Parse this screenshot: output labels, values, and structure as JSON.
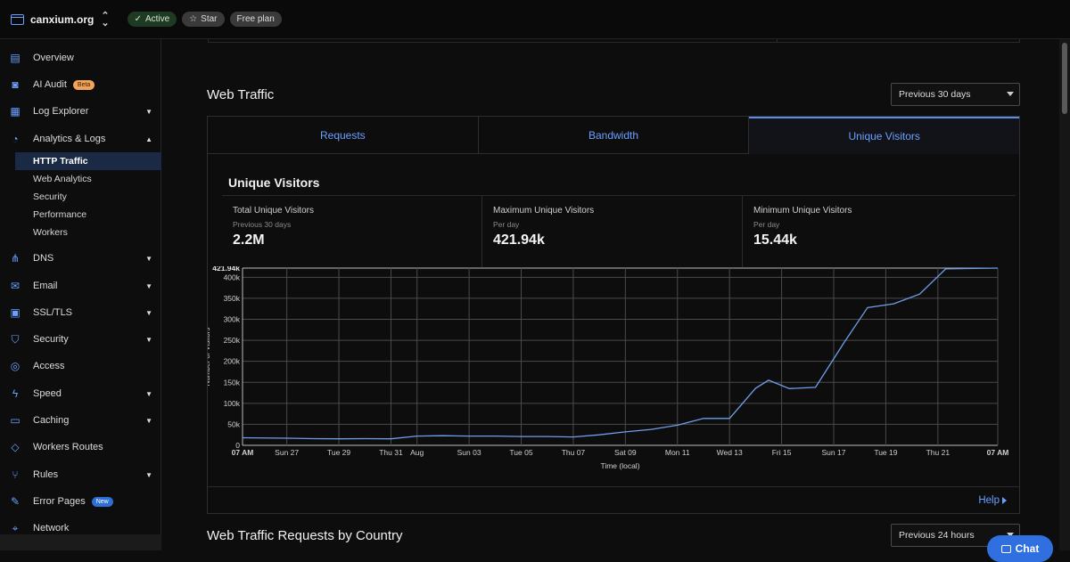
{
  "topbar": {
    "site_name": "canxium.org",
    "status_label": "Active",
    "star_label": "Star",
    "plan_label": "Free plan"
  },
  "sidebar": {
    "items": [
      {
        "label": "Overview",
        "icon": "document-icon",
        "top": 9
      },
      {
        "label": "AI Audit",
        "icon": "robot-icon",
        "badge": "Beta",
        "top": 39
      },
      {
        "label": "Log Explorer",
        "icon": "log-icon",
        "caret": "down",
        "top": 69
      },
      {
        "label": "Analytics & Logs",
        "icon": "chart-pie-icon",
        "caret": "up",
        "top": 100
      }
    ],
    "sub_items": [
      "HTTP Traffic",
      "Web Analytics",
      "Security",
      "Performance",
      "Workers"
    ],
    "items2": [
      {
        "label": "DNS",
        "icon": "network-icon",
        "caret": "down"
      },
      {
        "label": "Email",
        "icon": "email-icon",
        "caret": "down"
      },
      {
        "label": "SSL/TLS",
        "icon": "lock-icon",
        "caret": "down"
      },
      {
        "label": "Security",
        "icon": "shield-icon",
        "caret": "down"
      },
      {
        "label": "Access",
        "icon": "access-icon"
      },
      {
        "label": "Speed",
        "icon": "bolt-icon",
        "caret": "down"
      },
      {
        "label": "Caching",
        "icon": "server-icon",
        "caret": "down"
      },
      {
        "label": "Workers Routes",
        "icon": "workers-icon"
      },
      {
        "label": "Rules",
        "icon": "rules-icon",
        "caret": "down"
      },
      {
        "label": "Error Pages",
        "icon": "wrench-icon",
        "badge": "New"
      },
      {
        "label": "Network",
        "icon": "pin-icon"
      }
    ]
  },
  "web_traffic": {
    "title": "Web Traffic",
    "range_select": "Previous 30 days",
    "tabs": [
      "Requests",
      "Bandwidth",
      "Unique Visitors"
    ],
    "active_tab": 2,
    "card_title": "Unique Visitors",
    "stats": [
      {
        "label": "Total Unique Visitors",
        "sub": "Previous 30 days",
        "value": "2.2M"
      },
      {
        "label": "Maximum Unique Visitors",
        "sub": "Per day",
        "value": "421.94k"
      },
      {
        "label": "Minimum Unique Visitors",
        "sub": "Per day",
        "value": "15.44k"
      }
    ],
    "help_label": "Help"
  },
  "chart_data": {
    "type": "line",
    "ylabel": "Number of Visitors",
    "xlabel": "Time (local)",
    "ylim": [
      0,
      421940
    ],
    "y_ticks": [
      "0",
      "50k",
      "100k",
      "150k",
      "200k",
      "250k",
      "300k",
      "350k",
      "400k"
    ],
    "y_max_label": "421.94k",
    "x_tick_labels": [
      "07 AM",
      "Sun 27",
      "Tue 29",
      "Thu 31",
      "Aug",
      "Sun 03",
      "Tue 05",
      "Thu 07",
      "Sat 09",
      "Mon 11",
      "Wed 13",
      "Fri 15",
      "Sun 17",
      "Tue 19",
      "Thu 21",
      "07 AM"
    ],
    "x_tick_days": [
      0,
      1.7,
      3.7,
      5.7,
      6.7,
      8.7,
      10.7,
      12.7,
      14.7,
      16.7,
      18.7,
      20.7,
      22.7,
      24.7,
      26.7,
      29
    ],
    "grid": true,
    "series": [
      {
        "values": [
          [
            0,
            18000
          ],
          [
            1.7,
            17000
          ],
          [
            2.7,
            16000
          ],
          [
            3.7,
            15440
          ],
          [
            4.7,
            16000
          ],
          [
            5.7,
            15500
          ],
          [
            6.7,
            22000
          ],
          [
            7.7,
            23000
          ],
          [
            8.7,
            22000
          ],
          [
            9.7,
            22000
          ],
          [
            10.7,
            21000
          ],
          [
            11.7,
            21000
          ],
          [
            12.7,
            20000
          ],
          [
            13.7,
            25000
          ],
          [
            14.7,
            32000
          ],
          [
            15.7,
            38000
          ],
          [
            16.7,
            48000
          ],
          [
            17.7,
            64000
          ],
          [
            18.7,
            64000
          ],
          [
            19.7,
            136000
          ],
          [
            20.2,
            155000
          ],
          [
            21.0,
            135000
          ],
          [
            22.0,
            138000
          ],
          [
            23.1,
            245000
          ],
          [
            24.0,
            328000
          ],
          [
            25.0,
            337000
          ],
          [
            26.0,
            360000
          ],
          [
            27.0,
            420000
          ],
          [
            29,
            421940
          ]
        ]
      }
    ]
  },
  "country_section": {
    "title": "Web Traffic Requests by Country",
    "range_select": "Previous 24 hours"
  },
  "chat_label": "Chat",
  "colors": {
    "accent": "#6aa0ff",
    "line": "#6f9ee8"
  }
}
